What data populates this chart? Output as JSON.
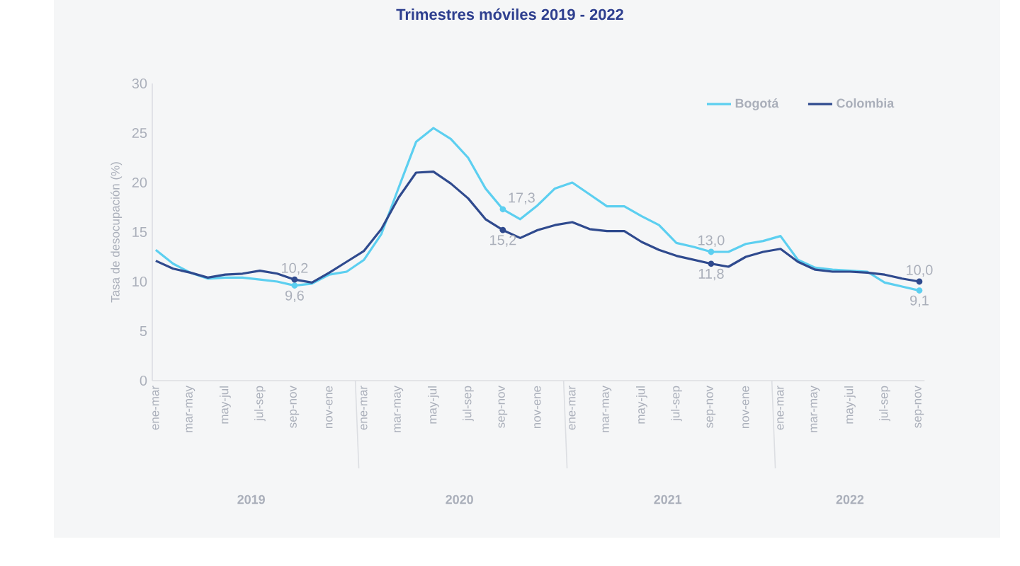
{
  "chart_data": {
    "type": "line",
    "title": "Trimestres móviles 2019 - 2022",
    "ylabel": "Tasa de desocupación (%)",
    "categories": [
      "ene-mar",
      null,
      "mar-may",
      null,
      "may-jul",
      null,
      "jul-sep",
      null,
      "sep-nov",
      null,
      "nov-ene",
      null,
      "ene-mar",
      null,
      "mar-may",
      null,
      "may-jul",
      null,
      "jul-sep",
      null,
      "sep-nov",
      null,
      "nov-ene",
      null,
      "ene-mar",
      null,
      "mar-may",
      null,
      "may-jul",
      null,
      "jul-sep",
      null,
      "sep-nov",
      null,
      "nov-ene",
      null,
      "ene-mar",
      null,
      "mar-may",
      null,
      "may-jul",
      null,
      "jul-sep",
      null,
      "sep-nov"
    ],
    "series": [
      {
        "name": "Bogotá",
        "color": "#5ccff0",
        "values": [
          13.2,
          11.8,
          10.9,
          10.3,
          10.4,
          10.4,
          10.2,
          10.0,
          9.6,
          9.8,
          10.7,
          11.0,
          12.2,
          14.8,
          19.5,
          24.1,
          25.5,
          24.4,
          22.5,
          19.4,
          17.3,
          16.3,
          17.7,
          19.4,
          20.0,
          18.8,
          17.6,
          17.6,
          16.6,
          15.7,
          13.9,
          13.5,
          13.0,
          13.0,
          13.8,
          14.1,
          14.6,
          12.2,
          11.4,
          11.2,
          11.1,
          11.0,
          9.9,
          9.5,
          9.1
        ],
        "value_labels": [
          null,
          null,
          null,
          null,
          null,
          null,
          null,
          null,
          "9,6",
          null,
          null,
          null,
          null,
          null,
          null,
          null,
          null,
          null,
          null,
          null,
          "17,3",
          null,
          null,
          null,
          null,
          null,
          null,
          null,
          null,
          null,
          null,
          null,
          "13,0",
          null,
          null,
          null,
          null,
          null,
          null,
          null,
          null,
          null,
          null,
          null,
          "9,1"
        ]
      },
      {
        "name": "Colombia",
        "color": "#2f4a8e",
        "values": [
          12.1,
          11.3,
          10.9,
          10.4,
          10.7,
          10.8,
          11.1,
          10.8,
          10.2,
          9.9,
          10.9,
          12.0,
          13.1,
          15.3,
          18.5,
          21.0,
          21.1,
          19.9,
          18.4,
          16.3,
          15.2,
          14.4,
          15.2,
          15.7,
          16.0,
          15.3,
          15.1,
          15.1,
          14.0,
          13.2,
          12.6,
          12.2,
          11.8,
          11.5,
          12.5,
          13.0,
          13.3,
          12.0,
          11.2,
          11.0,
          11.0,
          10.9,
          10.7,
          10.3,
          10.0
        ],
        "value_labels": [
          null,
          null,
          null,
          null,
          null,
          null,
          null,
          null,
          "10,2",
          null,
          null,
          null,
          null,
          null,
          null,
          null,
          null,
          null,
          null,
          null,
          "15,2",
          null,
          null,
          null,
          null,
          null,
          null,
          null,
          null,
          null,
          null,
          null,
          "11,8",
          null,
          null,
          null,
          null,
          null,
          null,
          null,
          null,
          null,
          null,
          null,
          "10,0"
        ]
      }
    ],
    "ylim": [
      0,
      30
    ],
    "yticks": [
      0,
      5,
      10,
      15,
      20,
      25,
      30
    ],
    "legend": "top right",
    "marker": "none",
    "line_style": "solid",
    "annotations": [
      "2019",
      "2020",
      "2021",
      "2022"
    ]
  }
}
